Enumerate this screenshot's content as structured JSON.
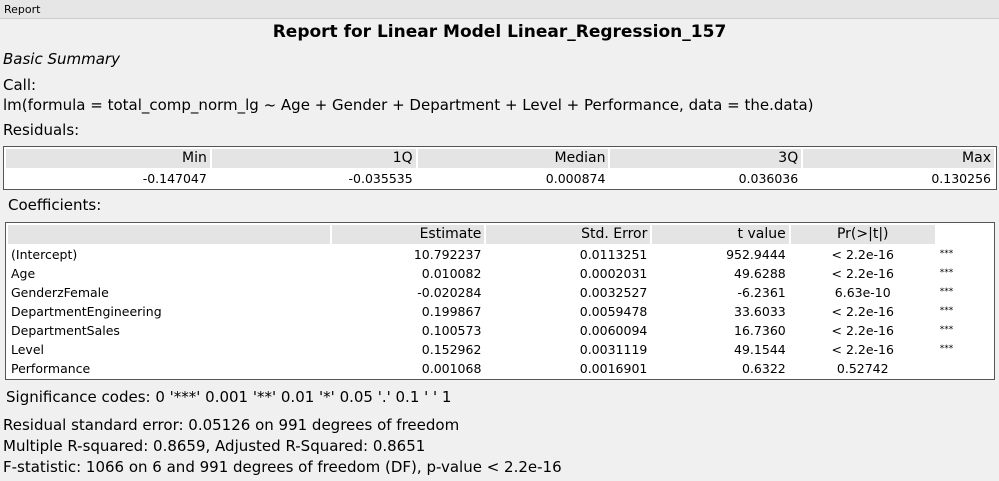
{
  "tab": "Report",
  "title": "Report for Linear Model Linear_Regression_157",
  "section": "Basic Summary",
  "call_label": "Call:",
  "call": "lm(formula = total_comp_norm_lg ~ Age + Gender + Department + Level + Performance, data = the.data)",
  "residuals": {
    "label": "Residuals:",
    "header": [
      "Min",
      "1Q",
      "Median",
      "3Q",
      "Max"
    ],
    "values": [
      "-0.147047",
      "-0.035535",
      "0.000874",
      "0.036036",
      "0.130256"
    ]
  },
  "coefficients": {
    "label": "Coefficients:",
    "header": [
      "Estimate",
      "Std. Error",
      "t value",
      "Pr(>|t|)"
    ],
    "rows": [
      [
        "(Intercept)",
        "10.792237",
        "0.0113251",
        "952.9444",
        "< 2.2e-16",
        "***"
      ],
      [
        "Age",
        "0.010082",
        "0.0002031",
        "49.6288",
        "< 2.2e-16",
        "***"
      ],
      [
        "GenderzFemale",
        "-0.020284",
        "0.0032527",
        "-6.2361",
        "6.63e-10",
        "***"
      ],
      [
        "DepartmentEngineering",
        "0.199867",
        "0.0059478",
        "33.6033",
        "< 2.2e-16",
        "***"
      ],
      [
        "DepartmentSales",
        "0.100573",
        "0.0060094",
        "16.7360",
        "< 2.2e-16",
        "***"
      ],
      [
        "Level",
        "0.152962",
        "0.0031119",
        "49.1544",
        "< 2.2e-16",
        "***"
      ],
      [
        "Performance",
        "0.001068",
        "0.0016901",
        "0.6322",
        "0.52742"
      ]
    ]
  },
  "significance": "Significance codes: 0 '***' 0.001 '**' 0.01 '*' 0.05 '.' 0.1 ' ' 1",
  "stats": [
    "Residual standard error: 0.05126 on 991 degrees of freedom",
    "Multiple R-squared: 0.8659, Adjusted R-Squared: 0.8651",
    "F-statistic: 1066 on 6 and 991 degrees of freedom (DF), p-value < 2.2e-16"
  ]
}
